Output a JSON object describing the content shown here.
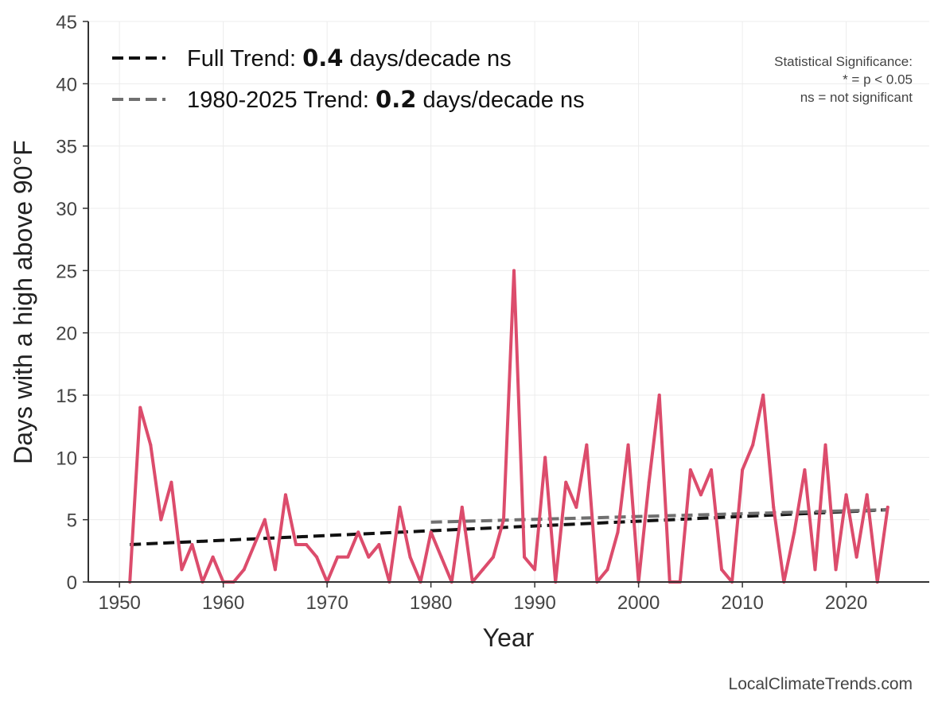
{
  "chart_data": {
    "type": "line",
    "xlabel": "Year",
    "ylabel": "Days with a high above 90°F",
    "xlim": [
      1947,
      2028
    ],
    "ylim": [
      0,
      45
    ],
    "x_ticks": [
      1950,
      1960,
      1970,
      1980,
      1990,
      2000,
      2010,
      2020
    ],
    "y_ticks": [
      0,
      5,
      10,
      15,
      20,
      25,
      30,
      35,
      40,
      45
    ],
    "grid": true,
    "series": [
      {
        "name": "",
        "color": "#dc4c6c",
        "x": [
          1951,
          1952,
          1953,
          1954,
          1955,
          1956,
          1957,
          1958,
          1959,
          1960,
          1961,
          1962,
          1963,
          1964,
          1965,
          1966,
          1967,
          1968,
          1969,
          1970,
          1971,
          1972,
          1973,
          1974,
          1975,
          1976,
          1977,
          1978,
          1979,
          1980,
          1981,
          1982,
          1983,
          1984,
          1985,
          1986,
          1987,
          1988,
          1989,
          1990,
          1991,
          1992,
          1993,
          1994,
          1995,
          1996,
          1997,
          1998,
          1999,
          2000,
          2001,
          2002,
          2003,
          2004,
          2005,
          2006,
          2007,
          2008,
          2009,
          2010,
          2011,
          2012,
          2013,
          2014,
          2015,
          2016,
          2017,
          2018,
          2019,
          2020,
          2021,
          2022,
          2023,
          2024
        ],
        "values": [
          0,
          14,
          11,
          5,
          8,
          1,
          3,
          0,
          2,
          0,
          0,
          1,
          3,
          5,
          1,
          7,
          3,
          3,
          2,
          0,
          2,
          2,
          4,
          2,
          3,
          0,
          6,
          2,
          0,
          4,
          2,
          0,
          6,
          0,
          1,
          2,
          5,
          25,
          2,
          1,
          10,
          0,
          8,
          6,
          11,
          0,
          1,
          4,
          11,
          0,
          8,
          15,
          0,
          0,
          9,
          7,
          9,
          1,
          0,
          9,
          11,
          15,
          6,
          0,
          4,
          9,
          1,
          11,
          1,
          7,
          2,
          7,
          0,
          6
        ]
      }
    ],
    "trends": [
      {
        "label_prefix": "Full Trend: ",
        "value": "0.4",
        "label_suffix": " days/decade ns",
        "color": "#111111",
        "x": [
          1951,
          2024
        ],
        "y": [
          3.0,
          5.8
        ]
      },
      {
        "label_prefix": "1980-2025 Trend: ",
        "value": "0.2",
        "label_suffix": " days/decade ns",
        "color": "#707070",
        "x": [
          1980,
          2024
        ],
        "y": [
          4.8,
          5.8
        ]
      }
    ],
    "annotation_lines": [
      "Statistical Significance:",
      "* = p < 0.05",
      "ns = not significant"
    ],
    "credit": "LocalClimateTrends.com"
  }
}
